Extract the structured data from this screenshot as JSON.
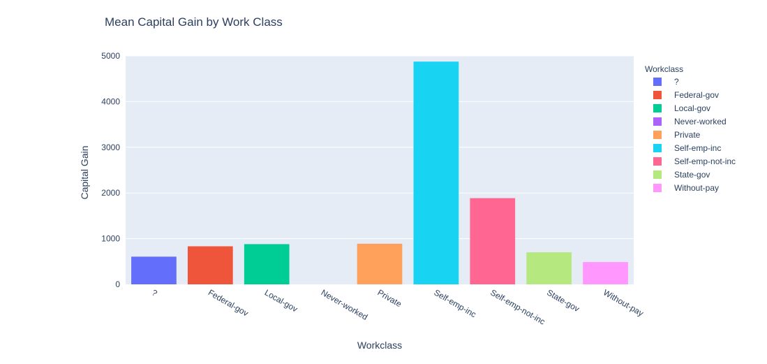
{
  "chart_data": {
    "type": "bar",
    "title": "Mean Capital Gain by Work Class",
    "xlabel": "Workclass",
    "ylabel": "Capital Gain",
    "categories": [
      "?",
      "Federal-gov",
      "Local-gov",
      "Never-worked",
      "Private",
      "Self-emp-inc",
      "Self-emp-not-inc",
      "State-gov",
      "Without-pay"
    ],
    "values": [
      606,
      833,
      880,
      0,
      889,
      4875,
      1887,
      701,
      488
    ],
    "colors": [
      "#636efa",
      "#EF553B",
      "#00cc96",
      "#ab63fa",
      "#FFA15A",
      "#19d3f3",
      "#FF6692",
      "#B6E880",
      "#FF97FF"
    ],
    "ylim": [
      0,
      5000
    ],
    "yticks": [
      0,
      1000,
      2000,
      3000,
      4000,
      5000
    ],
    "ytick_labels": [
      "0",
      "1000",
      "2000",
      "3000",
      "4000",
      "5000"
    ],
    "grid": true,
    "legend": {
      "title": "Workclass",
      "placement": "right",
      "entries": [
        "?",
        "Federal-gov",
        "Local-gov",
        "Never-worked",
        "Private",
        "Self-emp-inc",
        "Self-emp-not-inc",
        "State-gov",
        "Without-pay"
      ]
    }
  }
}
